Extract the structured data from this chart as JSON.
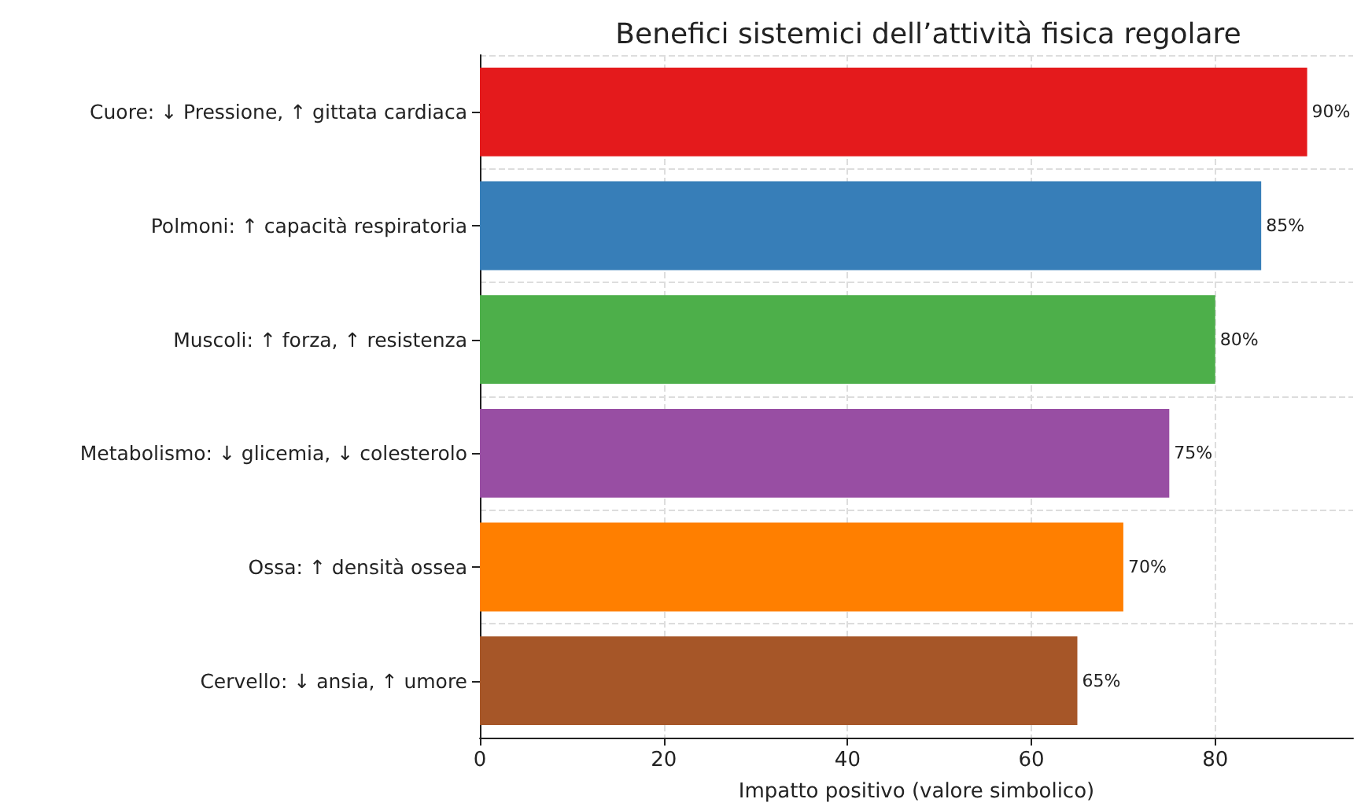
{
  "chart_data": {
    "type": "bar",
    "orientation": "horizontal",
    "title": "Benefici sistemici dell’attività fisica regolare",
    "xlabel": "Impatto positivo (valore simbolico)",
    "categories": [
      "Cuore: ↓ Pressione, ↑ gittata cardiaca",
      "Polmoni: ↑ capacità respiratoria",
      "Muscoli: ↑ forza, ↑ resistenza",
      "Metabolismo: ↓ glicemia, ↓ colesterolo",
      "Ossa: ↑ densità ossea",
      "Cervello: ↓ ansia, ↑ umore"
    ],
    "values": [
      90,
      85,
      80,
      75,
      70,
      65
    ],
    "colors": [
      "#e41a1c",
      "#377eb8",
      "#4daf4a",
      "#984ea3",
      "#ff7f00",
      "#a65628"
    ],
    "value_labels": [
      "90%",
      "85%",
      "80%",
      "75%",
      "70%",
      "65%"
    ],
    "xlim": [
      0,
      95
    ],
    "xticks": [
      0,
      20,
      40,
      60,
      80
    ],
    "grid": true
  }
}
